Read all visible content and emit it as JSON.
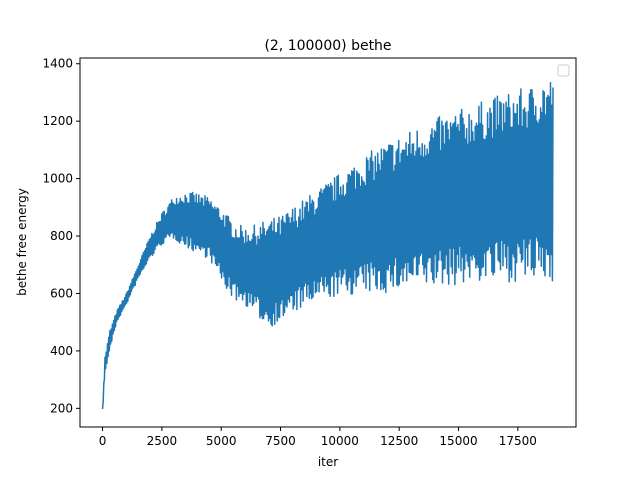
{
  "chart_data": {
    "type": "line",
    "title": "(2, 100000) bethe",
    "xlabel": "iter",
    "ylabel": "bethe free energy",
    "xlim": [
      -950,
      19950
    ],
    "ylim": [
      135,
      1420
    ],
    "xticks": [
      0,
      2500,
      5000,
      7500,
      10000,
      12500,
      15000,
      17500
    ],
    "xtick_labels": [
      "0",
      "2500",
      "5000",
      "7500",
      "10000",
      "12500",
      "15000",
      "17500"
    ],
    "yticks": [
      200,
      400,
      600,
      800,
      1000,
      1200,
      1400
    ],
    "ytick_labels": [
      "200",
      "400",
      "600",
      "800",
      "1000",
      "1200",
      "1400"
    ],
    "grid": false,
    "legend": "upper-right-empty",
    "series_color": "#1f77b4",
    "envelope": {
      "x": [
        0,
        100,
        300,
        600,
        1000,
        1500,
        2000,
        2500,
        3000,
        3500,
        4000,
        4500,
        5000,
        5500,
        6000,
        6500,
        7000,
        7500,
        8000,
        9000,
        10000,
        11000,
        12000,
        13000,
        14000,
        15000,
        16000,
        17000,
        18000,
        18500,
        19000
      ],
      "upper": [
        200,
        380,
        470,
        540,
        600,
        700,
        800,
        880,
        940,
        955,
        950,
        935,
        900,
        850,
        830,
        840,
        860,
        870,
        900,
        960,
        1020,
        1080,
        1130,
        1170,
        1210,
        1240,
        1270,
        1300,
        1320,
        1350,
        1360
      ],
      "lower": [
        190,
        320,
        400,
        500,
        560,
        650,
        720,
        770,
        790,
        760,
        740,
        720,
        640,
        580,
        560,
        520,
        480,
        500,
        530,
        570,
        590,
        600,
        600,
        620,
        620,
        630,
        640,
        640,
        640,
        640,
        640
      ]
    },
    "series": [
      {
        "points": [
          [
            0,
            190
          ],
          [
            200,
            400
          ],
          [
            600,
            520
          ],
          [
            1000,
            580
          ],
          [
            1500,
            680
          ],
          [
            2000,
            770
          ],
          [
            2500,
            830
          ],
          [
            3000,
            870
          ],
          [
            3500,
            860
          ],
          [
            4000,
            850
          ],
          [
            4500,
            830
          ],
          [
            5000,
            780
          ],
          [
            5500,
            720
          ],
          [
            6000,
            700
          ],
          [
            6500,
            690
          ],
          [
            7000,
            670
          ],
          [
            7500,
            690
          ],
          [
            8000,
            720
          ],
          [
            9000,
            770
          ],
          [
            10000,
            810
          ],
          [
            11000,
            840
          ],
          [
            12000,
            870
          ],
          [
            13000,
            900
          ],
          [
            14000,
            920
          ],
          [
            15000,
            940
          ],
          [
            16000,
            960
          ],
          [
            17000,
            980
          ],
          [
            18000,
            990
          ],
          [
            19000,
            1000
          ]
        ]
      }
    ]
  }
}
